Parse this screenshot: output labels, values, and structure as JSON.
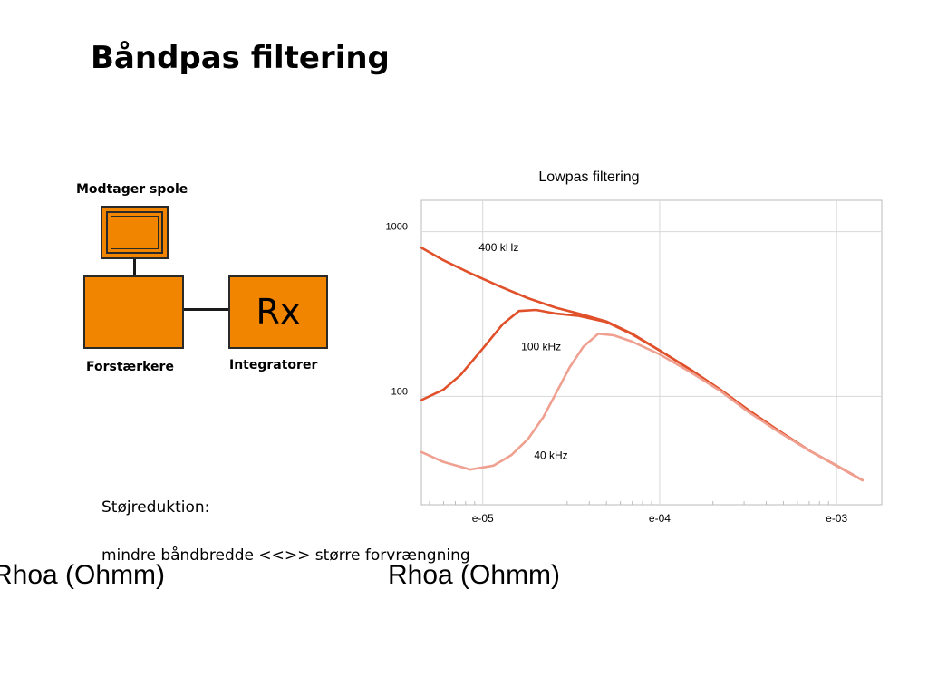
{
  "slide": {
    "title": "Båndpas filtering"
  },
  "diagram": {
    "receiver_coil_label": "Modtager spole",
    "amplifier_label": "Forstærkere",
    "integrator_label": "Integratorer",
    "rx_label": "Rx",
    "box_color": "#f28500"
  },
  "notes": {
    "heading": "Støjreduktion:",
    "body": "mindre båndbredde <<>> større forvrængning"
  },
  "overlay_labels": {
    "left": "Rhoa (Ohmm)",
    "right": "Rhoa (Ohmm)"
  },
  "chart_data": {
    "type": "line",
    "title": "Lowpas filtering",
    "x_scale": "log",
    "y_scale": "log",
    "x_ticks": [
      "e-05",
      "e-04",
      "e-03"
    ],
    "x_tick_values": [
      1e-05,
      0.0001,
      0.001
    ],
    "y_ticks": [
      "1000",
      "100"
    ],
    "y_tick_values": [
      1000,
      100
    ],
    "xlim": [
      4.5e-06,
      0.0018
    ],
    "ylim": [
      22,
      1550
    ],
    "grid": true,
    "series": [
      {
        "name": "400 kHz",
        "color": "#e0502a",
        "x": [
          4.5e-06,
          6e-06,
          8.5e-06,
          1.25e-05,
          1.8e-05,
          2.6e-05,
          3.5e-05,
          5e-05,
          7e-05,
          0.0001,
          0.00015,
          0.00022,
          0.00032,
          0.00047,
          0.0007,
          0.001,
          0.0014
        ],
        "y": [
          800,
          670,
          560,
          465,
          395,
          345,
          318,
          285,
          240,
          190,
          145,
          110,
          82,
          62,
          47,
          38,
          31
        ]
      },
      {
        "name": "100 kHz",
        "color": "#e0502a",
        "x": [
          4.5e-06,
          6e-06,
          7.5e-06,
          1e-05,
          1.3e-05,
          1.6e-05,
          2e-05,
          2.6e-05,
          3.5e-05,
          5e-05,
          7e-05,
          0.0001,
          0.00015,
          0.00022,
          0.00032,
          0.00047,
          0.0007,
          0.001,
          0.0014
        ],
        "y": [
          95,
          110,
          135,
          195,
          275,
          330,
          335,
          318,
          308,
          283,
          238,
          190,
          145,
          110,
          82,
          62,
          47,
          38,
          31
        ]
      },
      {
        "name": "40 kHz",
        "color": "#f0a090",
        "x": [
          4.5e-06,
          6e-06,
          8.5e-06,
          1.15e-05,
          1.45e-05,
          1.8e-05,
          2.2e-05,
          2.6e-05,
          3.1e-05,
          3.7e-05,
          4.5e-05,
          5.5e-05,
          7e-05,
          0.0001,
          0.00015,
          0.00022,
          0.00032,
          0.00047,
          0.0007,
          0.001,
          0.0014
        ],
        "y": [
          46,
          40,
          36,
          38,
          44,
          55,
          75,
          105,
          150,
          200,
          240,
          235,
          215,
          180,
          140,
          108,
          80,
          61,
          47,
          38,
          31
        ]
      }
    ],
    "annotations": [
      {
        "text": "400 kHz",
        "x": 9.5e-06,
        "y": 800
      },
      {
        "text": "100 kHz",
        "x": 1.65e-05,
        "y": 200
      },
      {
        "text": "40 kHz",
        "x": 1.95e-05,
        "y": 44
      }
    ]
  }
}
